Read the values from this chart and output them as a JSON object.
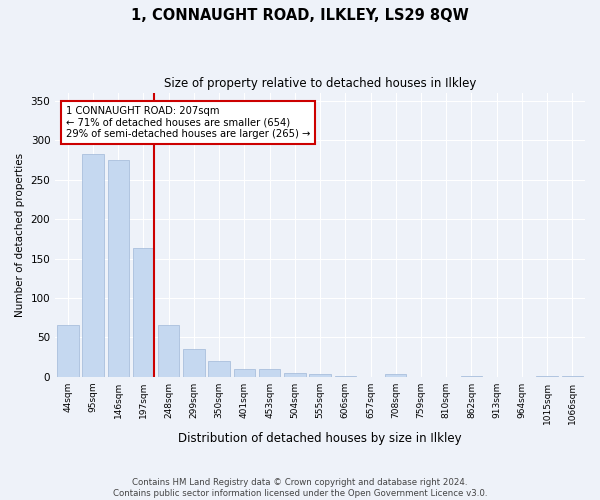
{
  "title": "1, CONNAUGHT ROAD, ILKLEY, LS29 8QW",
  "subtitle": "Size of property relative to detached houses in Ilkley",
  "xlabel": "Distribution of detached houses by size in Ilkley",
  "ylabel": "Number of detached properties",
  "footnote": "Contains HM Land Registry data © Crown copyright and database right 2024.\nContains public sector information licensed under the Open Government Licence v3.0.",
  "bar_color": "#c5d8f0",
  "bar_edge_color": "#a0b8d8",
  "annotation_box_color": "#ffffff",
  "annotation_box_edge": "#cc0000",
  "red_line_color": "#cc0000",
  "categories": [
    "44sqm",
    "95sqm",
    "146sqm",
    "197sqm",
    "248sqm",
    "299sqm",
    "350sqm",
    "401sqm",
    "453sqm",
    "504sqm",
    "555sqm",
    "606sqm",
    "657sqm",
    "708sqm",
    "759sqm",
    "810sqm",
    "862sqm",
    "913sqm",
    "964sqm",
    "1015sqm",
    "1066sqm"
  ],
  "values": [
    65,
    283,
    275,
    163,
    65,
    35,
    20,
    10,
    10,
    5,
    4,
    1,
    0,
    3,
    0,
    0,
    1,
    0,
    0,
    1,
    1
  ],
  "property_bar_index": 3,
  "annotation_line1": "1 CONNAUGHT ROAD: 207sqm",
  "annotation_line2": "← 71% of detached houses are smaller (654)",
  "annotation_line3": "29% of semi-detached houses are larger (265) →",
  "ylim": [
    0,
    360
  ],
  "yticks": [
    0,
    50,
    100,
    150,
    200,
    250,
    300,
    350
  ],
  "background_color": "#eef2f9",
  "grid_color": "#ffffff"
}
